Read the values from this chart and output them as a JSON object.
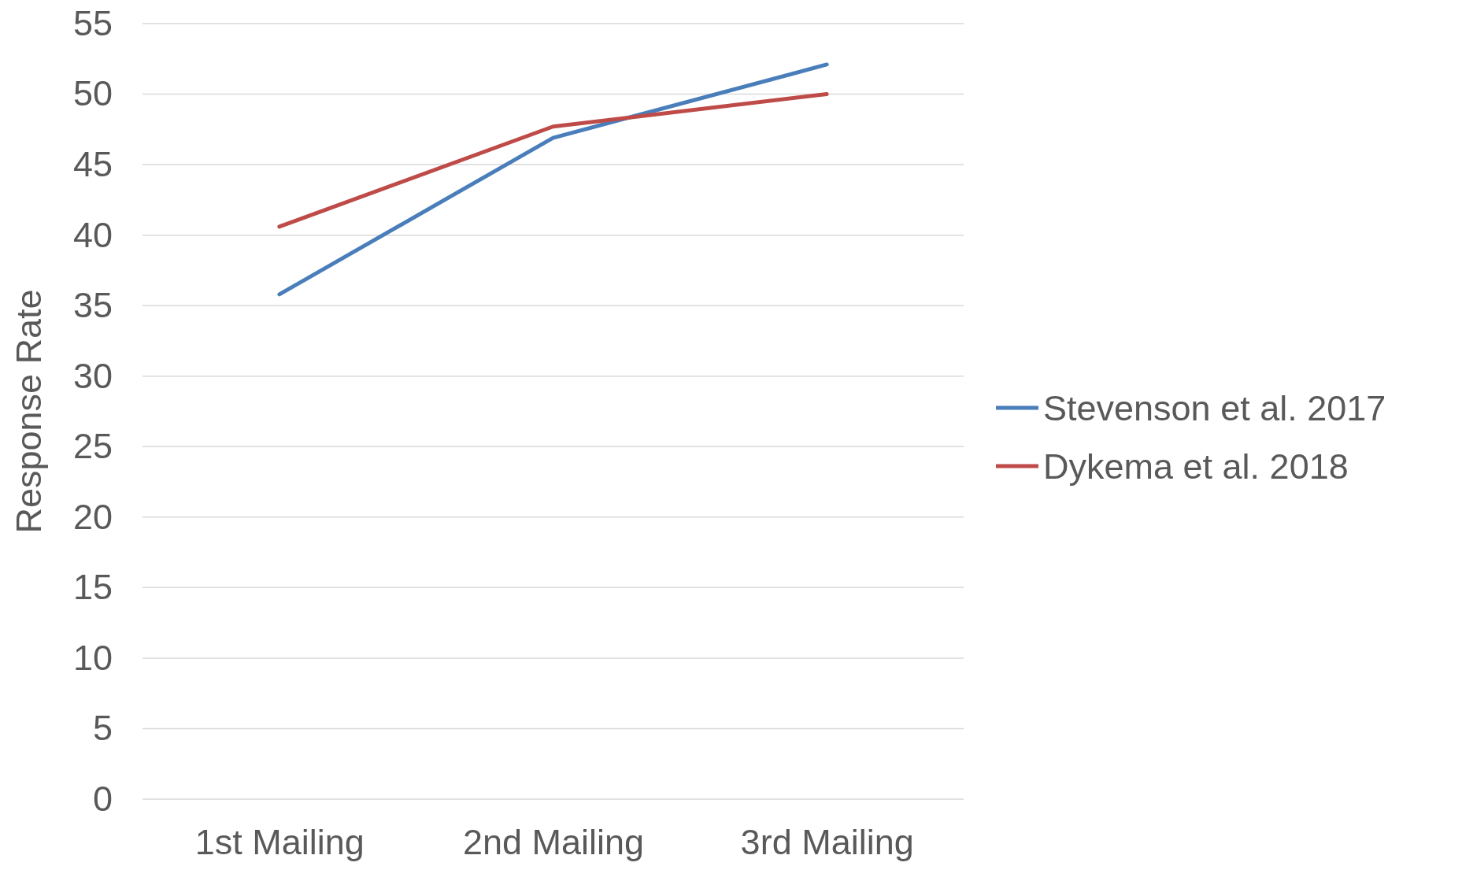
{
  "chart_data": {
    "type": "line",
    "ylabel": "Response Rate",
    "categories": [
      "1st Mailing",
      "2nd Mailing",
      "3rd Mailing"
    ],
    "series": [
      {
        "name": "Stevenson et al. 2017",
        "color": "#4a7ebb",
        "values": [
          35.8,
          46.9,
          52.1
        ]
      },
      {
        "name": "Dykema et al. 2018",
        "color": "#be4b48",
        "values": [
          40.6,
          47.7,
          50.0
        ]
      }
    ],
    "ylim": [
      0,
      55
    ],
    "yticks": [
      0,
      5,
      10,
      15,
      20,
      25,
      30,
      35,
      40,
      45,
      50,
      55
    ],
    "grid": "y",
    "legend": "right",
    "marker": "none",
    "line_style": "solid"
  }
}
